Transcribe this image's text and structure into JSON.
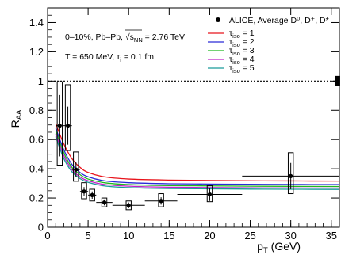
{
  "chart_data": {
    "type": "line",
    "xlabel": "p_T (GeV)",
    "ylabel": "R_AA",
    "xlim": [
      0,
      36
    ],
    "ylim": [
      0,
      1.5
    ],
    "x_ticks": [
      0,
      5,
      10,
      15,
      20,
      25,
      30,
      35
    ],
    "y_ticks": [
      0,
      0.2,
      0.4,
      0.6,
      0.8,
      1,
      1.2,
      1.4
    ],
    "x_tick_labels": [
      "0",
      "5",
      "10",
      "15",
      "20",
      "25",
      "30",
      "35"
    ],
    "y_tick_labels": [
      "0",
      "0.2",
      "0.4",
      "0.6",
      "0.8",
      "1",
      "1.2",
      "1.4"
    ],
    "grid": false,
    "legend_position": "top-right",
    "reference_line": {
      "y": 1,
      "style": "dotted"
    },
    "normalization_box": {
      "x": 35.8,
      "y": 1,
      "half_height": 0.035
    },
    "annotations": [
      {
        "text_parts": [
          "0–10%, Pb–Pb, ",
          "√",
          "s",
          "NN",
          " = 2.76 TeV"
        ]
      },
      {
        "text_parts": [
          "T = 650 MeV, τ",
          "i",
          " = 0.1 fm"
        ]
      }
    ],
    "data_series": {
      "name": "ALICE, Average D⁰, D⁺, D*",
      "points": [
        {
          "x": 1.5,
          "y": 0.695,
          "xerr": 0.5,
          "stat": 0.21,
          "sys_low": 0.27,
          "sys_high": 0.3
        },
        {
          "x": 2.5,
          "y": 0.695,
          "xerr": 0.5,
          "stat": 0.13,
          "sys_low": 0.17,
          "sys_high": 0.28
        },
        {
          "x": 3.5,
          "y": 0.395,
          "xerr": 0.5,
          "stat": 0.05,
          "sys_low": 0.08,
          "sys_high": 0.12
        },
        {
          "x": 4.5,
          "y": 0.245,
          "xerr": 0.5,
          "stat": 0.03,
          "sys_low": 0.05,
          "sys_high": 0.06
        },
        {
          "x": 5.5,
          "y": 0.22,
          "xerr": 0.5,
          "stat": 0.025,
          "sys_low": 0.04,
          "sys_high": 0.04
        },
        {
          "x": 7,
          "y": 0.17,
          "xerr": 1,
          "stat": 0.02,
          "sys_low": 0.03,
          "sys_high": 0.03
        },
        {
          "x": 10,
          "y": 0.15,
          "xerr": 2,
          "stat": 0.02,
          "sys_low": 0.03,
          "sys_high": 0.03
        },
        {
          "x": 14,
          "y": 0.18,
          "xerr": 2,
          "stat": 0.025,
          "sys_low": 0.04,
          "sys_high": 0.05
        },
        {
          "x": 20,
          "y": 0.225,
          "xerr": 4,
          "stat": 0.045,
          "sys_low": 0.05,
          "sys_high": 0.06
        },
        {
          "x": 30,
          "y": 0.35,
          "xerr": 6,
          "stat": 0.09,
          "sys_low": 0.12,
          "sys_high": 0.16
        }
      ]
    },
    "series": [
      {
        "name_main": "τ",
        "name_sub": "iso",
        "name_tail": " = 1",
        "color": "#e8141c",
        "x": [
          1,
          2,
          3,
          4,
          5,
          7,
          10,
          15,
          20,
          25,
          30,
          36
        ],
        "values": [
          0.71,
          0.57,
          0.47,
          0.41,
          0.375,
          0.345,
          0.33,
          0.323,
          0.32,
          0.318,
          0.317,
          0.316
        ]
      },
      {
        "name_main": "τ",
        "name_sub": "iso",
        "name_tail": " = 2",
        "color": "#2a2ad8",
        "x": [
          1,
          2,
          3,
          4,
          5,
          7,
          10,
          15,
          20,
          25,
          30,
          36
        ],
        "values": [
          0.68,
          0.53,
          0.43,
          0.375,
          0.345,
          0.318,
          0.305,
          0.298,
          0.296,
          0.294,
          0.293,
          0.292
        ]
      },
      {
        "name_main": "τ",
        "name_sub": "iso",
        "name_tail": " = 3",
        "color": "#1fb81f",
        "x": [
          1,
          2,
          3,
          4,
          5,
          7,
          10,
          15,
          20,
          25,
          30,
          36
        ],
        "values": [
          0.66,
          0.51,
          0.41,
          0.36,
          0.33,
          0.305,
          0.292,
          0.285,
          0.283,
          0.281,
          0.28,
          0.279
        ]
      },
      {
        "name_main": "τ",
        "name_sub": "iso",
        "name_tail": " = 4",
        "color": "#c020c8",
        "x": [
          1,
          2,
          3,
          4,
          5,
          7,
          10,
          15,
          20,
          25,
          30,
          36
        ],
        "values": [
          0.64,
          0.49,
          0.395,
          0.345,
          0.318,
          0.293,
          0.281,
          0.274,
          0.272,
          0.27,
          0.269,
          0.268
        ]
      },
      {
        "name_main": "τ",
        "name_sub": "iso",
        "name_tail": " = 5",
        "color": "#1a9a9a",
        "x": [
          1,
          2,
          3,
          4,
          5,
          7,
          10,
          15,
          20,
          25,
          30,
          36
        ],
        "values": [
          0.62,
          0.47,
          0.38,
          0.333,
          0.307,
          0.283,
          0.271,
          0.265,
          0.263,
          0.261,
          0.26,
          0.259
        ]
      }
    ]
  }
}
